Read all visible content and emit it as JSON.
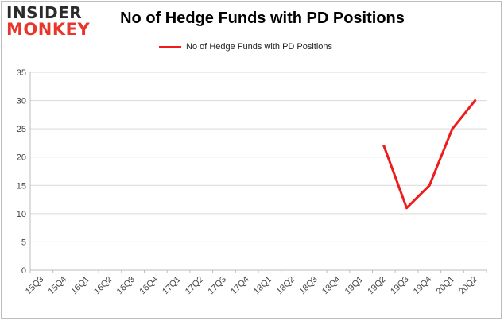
{
  "logo": {
    "line1": "INSIDER",
    "line2": "MONKEY"
  },
  "chart_data": {
    "type": "line",
    "title": "No of Hedge Funds with PD Positions",
    "xlabel": "",
    "ylabel": "",
    "categories": [
      "15Q3",
      "15Q4",
      "16Q1",
      "16Q2",
      "16Q3",
      "16Q4",
      "17Q1",
      "17Q2",
      "17Q3",
      "17Q4",
      "18Q1",
      "18Q2",
      "18Q3",
      "18Q4",
      "19Q1",
      "19Q2",
      "19Q3",
      "19Q4",
      "20Q1",
      "20Q2"
    ],
    "series": [
      {
        "name": "No of Hedge Funds with PD Positions",
        "color": "#ee1c1c",
        "values": [
          null,
          null,
          null,
          null,
          null,
          null,
          null,
          null,
          null,
          null,
          null,
          null,
          null,
          null,
          null,
          22,
          11,
          15,
          25,
          30
        ]
      }
    ],
    "ylim": [
      0,
      35
    ],
    "yticks": [
      0,
      5,
      10,
      15,
      20,
      25,
      30,
      35
    ],
    "grid": "horizontal",
    "legend": "top-center"
  }
}
